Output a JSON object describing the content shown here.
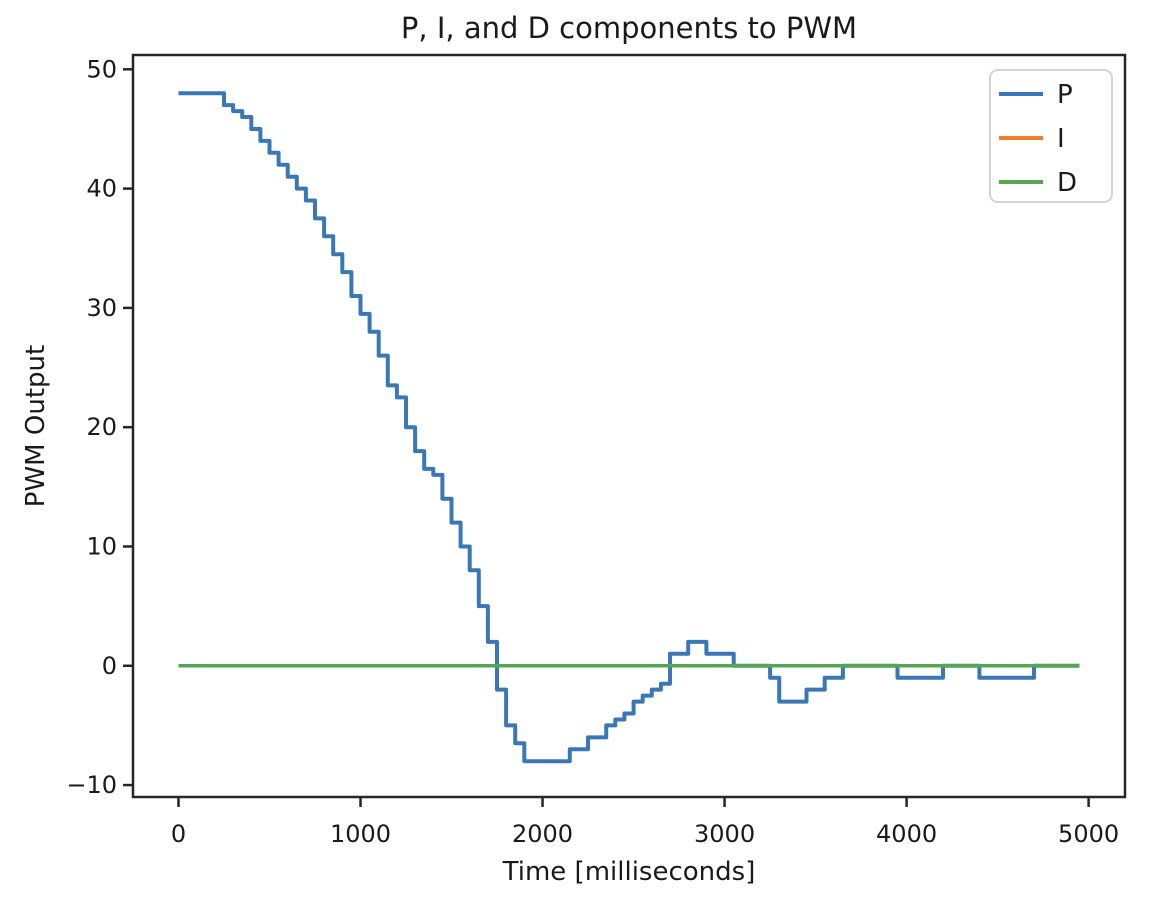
{
  "figure": {
    "title": "P, I, and D components to PWM",
    "xlabel": "Time [milliseconds]",
    "ylabel": "PWM Output"
  },
  "chart_data": {
    "type": "line",
    "title": "P, I, and D components to PWM",
    "xlabel": "Time [milliseconds]",
    "ylabel": "PWM Output",
    "draw_style": "steps-post",
    "grid": false,
    "legend": {
      "position": "upper right",
      "entries": [
        "P",
        "I",
        "D"
      ]
    },
    "xlim": [
      -250,
      5200
    ],
    "ylim": [
      -11,
      51.2
    ],
    "x_ticks": {
      "values": [
        0,
        1000,
        2000,
        3000,
        4000,
        5000
      ],
      "labels": [
        "0",
        "1000",
        "2000",
        "3000",
        "4000",
        "5000"
      ]
    },
    "y_ticks": {
      "values": [
        -10,
        0,
        10,
        20,
        30,
        40,
        50
      ],
      "labels": [
        "−10",
        "0",
        "10",
        "20",
        "30",
        "40",
        "50"
      ]
    },
    "colors": {
      "P": "#3a78b5",
      "I": "#ef7f28",
      "D": "#55a653",
      "text": "#1a1a1a",
      "spine": "#262626",
      "legend_border": "#d4d4d4"
    },
    "series": [
      {
        "name": "P",
        "color": "#3a78b5",
        "x": [
          0,
          50,
          100,
          150,
          200,
          250,
          300,
          350,
          400,
          450,
          500,
          550,
          600,
          650,
          700,
          750,
          800,
          850,
          900,
          950,
          1000,
          1050,
          1100,
          1150,
          1200,
          1250,
          1300,
          1350,
          1400,
          1450,
          1500,
          1550,
          1600,
          1650,
          1700,
          1750,
          1800,
          1850,
          1900,
          1950,
          2000,
          2050,
          2100,
          2150,
          2200,
          2250,
          2300,
          2350,
          2400,
          2450,
          2500,
          2550,
          2600,
          2650,
          2700,
          2750,
          2800,
          2850,
          2900,
          2950,
          3000,
          3050,
          3100,
          3150,
          3200,
          3250,
          3300,
          3350,
          3400,
          3450,
          3500,
          3550,
          3600,
          3650,
          3700,
          3750,
          3800,
          3850,
          3900,
          3950,
          4000,
          4050,
          4100,
          4150,
          4200,
          4250,
          4300,
          4350,
          4400,
          4450,
          4500,
          4550,
          4600,
          4650,
          4700,
          4750,
          4800,
          4850,
          4900,
          4950
        ],
        "values": [
          48,
          48,
          48,
          48,
          48,
          47,
          46.5,
          46,
          45,
          44,
          43,
          42,
          41,
          40,
          39,
          37.5,
          36,
          34.5,
          33,
          31,
          29.5,
          28,
          26,
          23.5,
          22.5,
          20,
          18,
          16.5,
          16,
          14,
          12,
          10,
          8,
          5,
          2,
          -2,
          -5,
          -6.5,
          -8,
          -8,
          -8,
          -8,
          -8,
          -7,
          -7,
          -6,
          -6,
          -5,
          -4.5,
          -4,
          -3,
          -2.5,
          -2,
          -1.5,
          1,
          1,
          2,
          2,
          1,
          1,
          1,
          0,
          0,
          0,
          0,
          -1,
          -3,
          -3,
          -3,
          -2,
          -2,
          -1,
          -1,
          0,
          0,
          0,
          0,
          0,
          0,
          -1,
          -1,
          -1,
          -1,
          -1,
          0,
          0,
          0,
          0,
          -1,
          -1,
          -1,
          -1,
          -1,
          -1,
          0,
          0,
          0,
          0,
          0,
          0
        ]
      },
      {
        "name": "I",
        "color": "#ef7f28",
        "x": [
          0,
          4950
        ],
        "values": [
          0,
          0
        ]
      },
      {
        "name": "D",
        "color": "#55a653",
        "x": [
          0,
          4950
        ],
        "values": [
          0,
          0
        ]
      }
    ]
  }
}
